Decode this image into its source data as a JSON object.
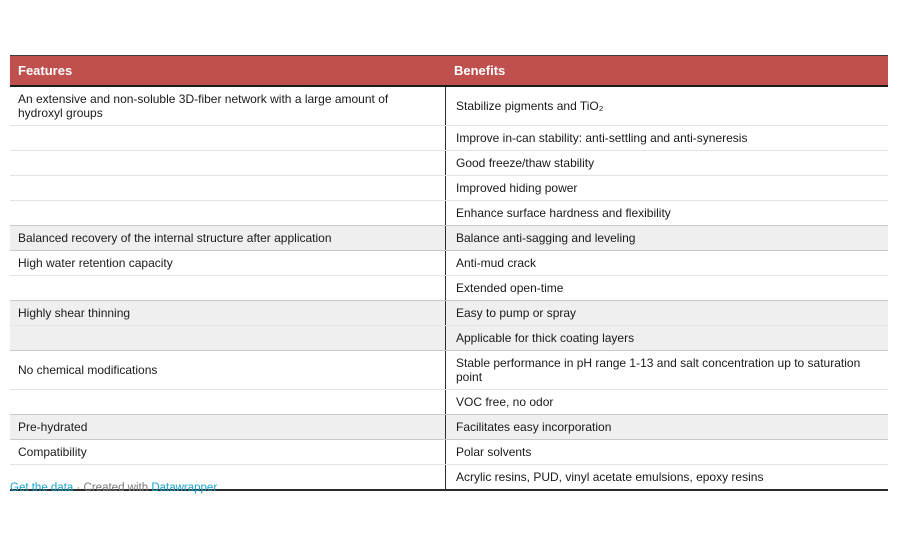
{
  "chart_data": {
    "type": "table",
    "columns": [
      "Features",
      "Benefits"
    ],
    "groups": [
      {
        "feature": "An extensive and non-soluble 3D-fiber network with a large amount of hydroxyl groups",
        "benefits": [
          "Stabilize pigments and TiO₂",
          "Improve in-can stability: anti-settling and anti-syneresis",
          "Good freeze/thaw stability",
          "Improved hiding power",
          "Enhance surface hardness and flexibility"
        ],
        "shaded": false
      },
      {
        "feature": "Balanced recovery of the internal structure after application",
        "benefits": [
          "Balance anti-sagging and leveling"
        ],
        "shaded": true
      },
      {
        "feature": "High water retention capacity",
        "benefits": [
          "Anti-mud crack",
          "Extended open-time"
        ],
        "shaded": false
      },
      {
        "feature": "Highly shear thinning",
        "benefits": [
          "Easy to pump or spray",
          "Applicable for thick coating layers"
        ],
        "shaded": true
      },
      {
        "feature": "No chemical modifications",
        "benefits": [
          "Stable performance in pH range 1-13 and salt concentration up to saturation point",
          "VOC free, no odor"
        ],
        "shaded": false
      },
      {
        "feature": "Pre-hydrated",
        "benefits": [
          "Facilitates easy incorporation"
        ],
        "shaded": true
      },
      {
        "feature": "Compatibility",
        "benefits": [
          "Polar solvents",
          "Acrylic resins, PUD, vinyl acetate emulsions, epoxy resins"
        ],
        "shaded": false
      }
    ],
    "layout": {
      "header_bg": "#c0504d",
      "header_text_color": "#ffffff",
      "stripe_color": "#efefef",
      "divider_color": "#2b2b2b",
      "grid": "horizontal rules between rows"
    }
  },
  "footer": {
    "get_data_label": "Get the data",
    "separator": "·",
    "created_with_label": "Created with",
    "brand_label": "Datawrapper",
    "link_color": "#18a1cd"
  }
}
